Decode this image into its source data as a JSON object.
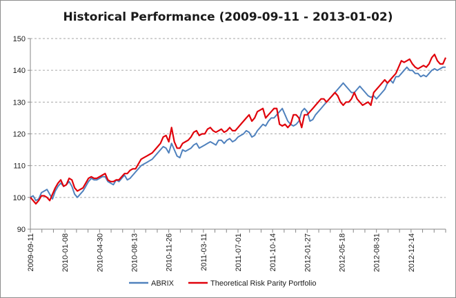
{
  "chart_data": {
    "type": "line",
    "title": "Historical Performance (2009-09-11 - 2013-01-02)",
    "xlabel": "",
    "ylabel": "",
    "ylim": [
      90,
      150
    ],
    "yticks": [
      90,
      100,
      110,
      120,
      130,
      140,
      150
    ],
    "xticks": [
      "2009-09-11",
      "2010-01-08",
      "2010-04-30",
      "2010-08-13",
      "2010-11-26",
      "2011-03-11",
      "2011-07-01",
      "2011-10-14",
      "2012-01-27",
      "2012-05-18",
      "2012-08-31",
      "2012-12-14"
    ],
    "grid": "horizontal dashed",
    "legend": "bottom",
    "series": [
      {
        "name": "ABRIX",
        "color": "#4f81bd",
        "values": [
          100,
          100.5,
          99,
          99.5,
          101.5,
          102,
          102.5,
          101,
          99.5,
          102,
          103.5,
          104.5,
          103.5,
          104,
          105,
          103.5,
          101,
          100,
          101,
          102,
          103.5,
          105,
          106,
          105.5,
          105.5,
          106,
          106.5,
          106.5,
          105,
          104.5,
          104,
          105.5,
          105,
          106,
          107,
          105.5,
          106,
          107,
          108,
          109,
          110,
          110.5,
          111,
          111.5,
          112,
          113,
          114,
          115,
          116,
          115.5,
          114,
          117,
          115,
          113,
          112.5,
          115,
          114.5,
          115,
          115.5,
          116.5,
          117,
          115.5,
          116,
          116.5,
          117,
          117.5,
          117,
          116.5,
          118,
          118,
          117,
          118,
          118.5,
          117.5,
          118,
          119,
          119.5,
          120,
          121,
          120.5,
          119,
          119.5,
          121,
          122,
          123,
          122.5,
          124,
          125,
          125,
          126,
          127,
          128,
          126,
          124,
          123,
          122.5,
          123,
          124,
          127,
          128,
          127,
          124,
          124.5,
          126,
          127,
          128,
          129,
          130,
          131,
          132,
          133,
          134,
          135,
          136,
          135,
          134,
          133,
          133,
          134,
          135,
          134,
          133,
          132,
          131.5,
          132,
          131,
          132,
          133,
          134,
          136,
          137,
          136,
          138,
          138,
          139,
          140,
          141,
          140,
          140,
          139,
          139,
          138,
          138.5,
          138,
          139,
          140,
          140.5,
          140,
          140.5,
          141,
          141
        ]
      },
      {
        "name": "Theoretical Risk Parity Portfolio",
        "color": "#e0000a",
        "values": [
          100,
          99,
          98,
          99,
          100.5,
          100.5,
          100,
          99,
          101,
          103,
          104.5,
          105.5,
          103.5,
          104,
          106,
          105.5,
          103,
          102,
          102.5,
          103,
          104.5,
          106,
          106.5,
          106,
          106,
          106.5,
          107,
          107.5,
          105.5,
          105,
          105,
          105.5,
          105.5,
          106.5,
          107.5,
          107.5,
          108.5,
          109,
          109,
          110.5,
          112,
          112.5,
          113,
          113.5,
          114,
          115,
          116,
          117,
          119,
          119.5,
          117.5,
          122,
          117.5,
          115.5,
          115.5,
          117,
          117.5,
          118,
          119,
          120.5,
          121,
          119.5,
          120,
          120,
          121.5,
          122,
          121,
          120.5,
          121,
          121.5,
          120.5,
          121,
          122,
          121,
          121,
          122,
          123,
          124,
          125,
          126,
          124,
          125,
          127,
          127.5,
          128,
          125,
          126,
          127,
          128,
          128,
          123,
          122.5,
          123,
          122,
          123,
          126,
          126,
          125,
          122,
          126,
          126,
          127,
          128,
          129,
          130,
          131,
          131,
          130,
          131,
          132,
          133,
          132,
          130,
          129,
          130,
          130,
          131,
          133,
          131,
          130,
          129,
          129.5,
          130,
          129,
          133,
          134,
          135,
          136,
          137,
          136,
          137,
          138,
          139,
          141,
          143,
          142.5,
          143,
          143.5,
          142,
          141,
          140.5,
          141,
          141.5,
          141,
          142,
          144,
          145,
          143,
          142,
          142,
          144
        ]
      }
    ]
  }
}
